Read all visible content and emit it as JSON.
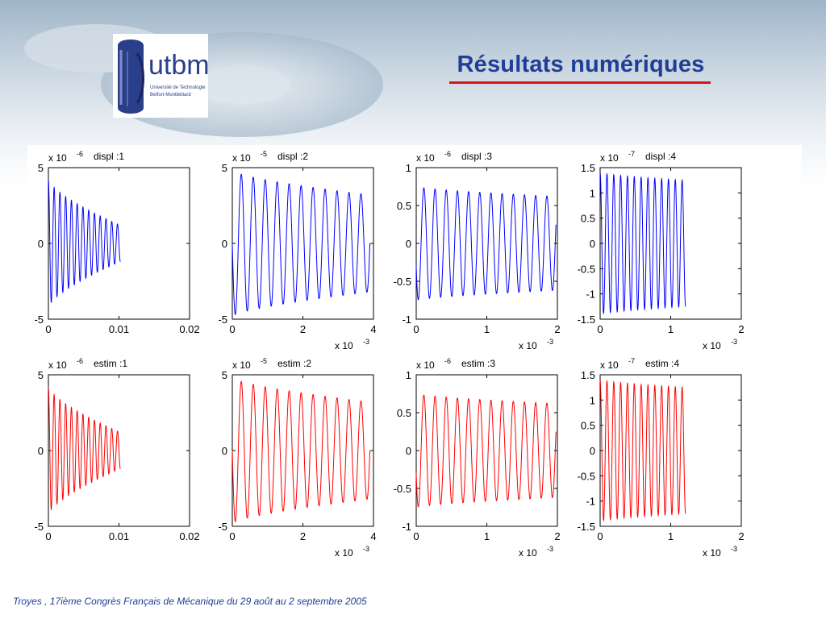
{
  "slide": {
    "title": "Résultats numériques",
    "logo_text": "utbm",
    "logo_subtext": [
      "Université de Technologie",
      "Belfort-Montbéliard"
    ],
    "footer": "Troyes , 17ième Congrès Français de Mécanique du 29 août au 2 septembre 2005",
    "colors": {
      "title": "#1f3e96",
      "underline": "#d11818",
      "displ": "#0000ff",
      "estim": "#ff0000"
    }
  },
  "chart_data": [
    {
      "type": "line",
      "title": "displ :1",
      "exponent_label": "x 10",
      "exponent": "-6",
      "color": "#0000ff",
      "xlim": [
        0,
        0.02
      ],
      "ylim": [
        -5,
        5
      ],
      "xticks": [
        0,
        0.01,
        0.02
      ],
      "xticklabels": [
        "0",
        "0.01",
        "0.02"
      ],
      "yticks": [
        -5,
        0,
        5
      ],
      "yticklabels": [
        "-5",
        "0",
        "5"
      ],
      "xexponent": "",
      "series": [
        {
          "amplitude_start": 4.2,
          "amplitude_end": 1.2,
          "cycles": 12.5,
          "t_end": 0.0102,
          "start_value": 4.2
        }
      ]
    },
    {
      "type": "line",
      "title": "displ :2",
      "exponent_label": "x 10",
      "exponent": "-5",
      "color": "#0000ff",
      "xlim": [
        0,
        4
      ],
      "ylim": [
        -5,
        5
      ],
      "xticks": [
        0,
        2,
        4
      ],
      "xticklabels": [
        "0",
        "2",
        "4"
      ],
      "yticks": [
        -5,
        0,
        5
      ],
      "yticklabels": [
        "-5",
        "0",
        "5"
      ],
      "xexponent": "-3",
      "series": [
        {
          "amplitude_start": 4.8,
          "amplitude_end": 3.2,
          "cycles": 11.5,
          "t_end": 3.9,
          "start_value": 0
        }
      ]
    },
    {
      "type": "line",
      "title": "displ :3",
      "exponent_label": "x 10",
      "exponent": "-6",
      "color": "#0000ff",
      "xlim": [
        0,
        2
      ],
      "ylim": [
        -1,
        1
      ],
      "xticks": [
        0,
        1,
        2
      ],
      "xticklabels": [
        "0",
        "1",
        "2"
      ],
      "yticks": [
        -1,
        -0.5,
        0,
        0.5,
        1
      ],
      "yticklabels": [
        "-1",
        "-0.5",
        "0",
        "0.5",
        "1"
      ],
      "xexponent": "-3",
      "series": [
        {
          "amplitude_start": 0.75,
          "amplitude_end": 0.62,
          "cycles": 12.5,
          "t_end": 1.98,
          "start_value": -0.3
        }
      ]
    },
    {
      "type": "line",
      "title": "displ :4",
      "exponent_label": "x 10",
      "exponent": "-7",
      "color": "#0000ff",
      "xlim": [
        0,
        2
      ],
      "ylim": [
        -1.5,
        1.5
      ],
      "xticks": [
        0,
        1,
        2
      ],
      "xticklabels": [
        "0",
        "1",
        "2"
      ],
      "yticks": [
        -1.5,
        -1,
        -0.5,
        0,
        0.5,
        1,
        1.5
      ],
      "yticklabels": [
        "-1.5",
        "-1",
        "-0.5",
        "0",
        "0.5",
        "1",
        "1.5"
      ],
      "xexponent": "-3",
      "series": [
        {
          "amplitude_start": 1.4,
          "amplitude_end": 1.25,
          "cycles": 12.5,
          "t_end": 1.21,
          "start_value": 1.4
        }
      ]
    },
    {
      "type": "line",
      "title": "estim :1",
      "exponent_label": "x 10",
      "exponent": "-6",
      "color": "#ff0000",
      "xlim": [
        0,
        0.02
      ],
      "ylim": [
        -5,
        5
      ],
      "xticks": [
        0,
        0.01,
        0.02
      ],
      "xticklabels": [
        "0",
        "0.01",
        "0.02"
      ],
      "yticks": [
        -5,
        0,
        5
      ],
      "yticklabels": [
        "-5",
        "0",
        "5"
      ],
      "xexponent": "",
      "series": [
        {
          "amplitude_start": 4.2,
          "amplitude_end": 1.2,
          "cycles": 12.5,
          "t_end": 0.0102,
          "start_value": 4.2
        }
      ]
    },
    {
      "type": "line",
      "title": "estim :2",
      "exponent_label": "x 10",
      "exponent": "-5",
      "color": "#ff0000",
      "xlim": [
        0,
        4
      ],
      "ylim": [
        -5,
        5
      ],
      "xticks": [
        0,
        2,
        4
      ],
      "xticklabels": [
        "0",
        "2",
        "4"
      ],
      "yticks": [
        -5,
        0,
        5
      ],
      "yticklabels": [
        "-5",
        "0",
        "5"
      ],
      "xexponent": "-3",
      "series": [
        {
          "amplitude_start": 4.8,
          "amplitude_end": 3.2,
          "cycles": 11.5,
          "t_end": 3.9,
          "start_value": 0
        }
      ]
    },
    {
      "type": "line",
      "title": "estim :3",
      "exponent_label": "x 10",
      "exponent": "-6",
      "color": "#ff0000",
      "xlim": [
        0,
        2
      ],
      "ylim": [
        -1,
        1
      ],
      "xticks": [
        0,
        1,
        2
      ],
      "xticklabels": [
        "0",
        "1",
        "2"
      ],
      "yticks": [
        -1,
        -0.5,
        0,
        0.5,
        1
      ],
      "yticklabels": [
        "-1",
        "-0.5",
        "0",
        "0.5",
        "1"
      ],
      "xexponent": "-3",
      "series": [
        {
          "amplitude_start": 0.75,
          "amplitude_end": 0.62,
          "cycles": 12.5,
          "t_end": 1.98,
          "start_value": -0.3
        }
      ]
    },
    {
      "type": "line",
      "title": "estim :4",
      "exponent_label": "x 10",
      "exponent": "-7",
      "color": "#ff0000",
      "xlim": [
        0,
        2
      ],
      "ylim": [
        -1.5,
        1.5
      ],
      "xticks": [
        0,
        1,
        2
      ],
      "xticklabels": [
        "0",
        "1",
        "2"
      ],
      "yticks": [
        -1.5,
        -1,
        -0.5,
        0,
        0.5,
        1,
        1.5
      ],
      "yticklabels": [
        "-1.5",
        "-1",
        "-0.5",
        "0",
        "0.5",
        "1",
        "1.5"
      ],
      "xexponent": "-3",
      "series": [
        {
          "amplitude_start": 1.4,
          "amplitude_end": 1.25,
          "cycles": 12.5,
          "t_end": 1.21,
          "start_value": 1.4
        }
      ]
    }
  ]
}
